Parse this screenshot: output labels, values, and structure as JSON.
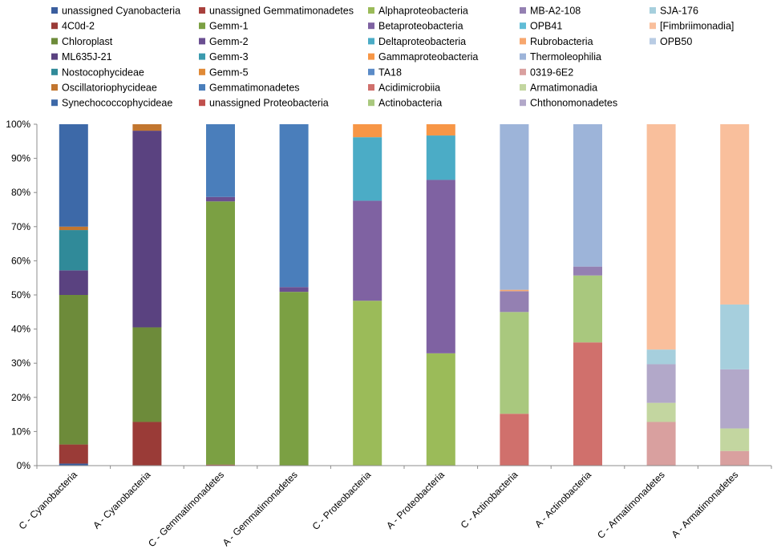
{
  "chart_data": {
    "type": "bar",
    "stacked": true,
    "title": "",
    "xlabel": "",
    "ylabel": "",
    "ylim": [
      0,
      100
    ],
    "y_tick_format": "percent",
    "y_ticks": [
      "0%",
      "10%",
      "20%",
      "30%",
      "40%",
      "50%",
      "60%",
      "70%",
      "80%",
      "90%",
      "100%"
    ],
    "grid": false,
    "legend_position": "top",
    "categories": [
      "C - Cyanobacteria",
      "A - Cyanobacteria",
      "C - Gemmatimonadetes",
      "A - Gemmatimonadetes",
      "C - Proteobacteria",
      "A - Proteobacteria",
      "C - Actinobacteria",
      "A - Actinobacteria",
      "C - Armatimonadetes",
      "A - Armatimonadetes"
    ],
    "series": [
      {
        "name": "unassigned Cyanobacteria",
        "color": "#3A5E9E",
        "values": [
          0.6,
          0,
          0,
          0,
          0,
          0,
          0,
          0,
          0,
          0
        ]
      },
      {
        "name": "4C0d-2",
        "color": "#9A3B37",
        "values": [
          5.6,
          12.8,
          0,
          0,
          0,
          0,
          0,
          0,
          0,
          0
        ]
      },
      {
        "name": "Chloroplast",
        "color": "#6D8B3A",
        "values": [
          43.8,
          27.7,
          0,
          0,
          0,
          0,
          0,
          0,
          0,
          0
        ]
      },
      {
        "name": "ML635J-21",
        "color": "#5A4280",
        "values": [
          7.2,
          57.6,
          0,
          0,
          0,
          0,
          0,
          0,
          0,
          0
        ]
      },
      {
        "name": "Nostocophycideae",
        "color": "#308A99",
        "values": [
          11.8,
          0,
          0,
          0,
          0,
          0,
          0,
          0,
          0,
          0
        ]
      },
      {
        "name": "Oscillatoriophycideae",
        "color": "#C2762F",
        "values": [
          1.0,
          1.9,
          0,
          0,
          0,
          0,
          0,
          0,
          0,
          0
        ]
      },
      {
        "name": "Synechococcophycideae",
        "color": "#3D69A8",
        "values": [
          30.0,
          0,
          0,
          0,
          0,
          0,
          0,
          0,
          0,
          0
        ]
      },
      {
        "name": "unassigned Gemmatimonadetes",
        "color": "#A8403C",
        "values": [
          0,
          0,
          0.3,
          0,
          0,
          0,
          0,
          0,
          0,
          0
        ]
      },
      {
        "name": "Gemm-1",
        "color": "#7BA043",
        "values": [
          0,
          0,
          77.1,
          50.9,
          0,
          0,
          0,
          0,
          0,
          0
        ]
      },
      {
        "name": "Gemm-2",
        "color": "#6A4F91",
        "values": [
          0,
          0,
          1.3,
          1.4,
          0,
          0,
          0,
          0,
          0,
          0
        ]
      },
      {
        "name": "Gemm-3",
        "color": "#3A9AAE",
        "values": [
          0,
          0,
          0,
          0,
          0,
          0,
          0,
          0,
          0,
          0
        ]
      },
      {
        "name": "Gemm-5",
        "color": "#E08A36",
        "values": [
          0,
          0,
          0,
          0,
          0,
          0,
          0,
          0,
          0,
          0
        ]
      },
      {
        "name": "Gemmatimonadetes",
        "color": "#4A7EBB",
        "values": [
          0,
          0,
          21.3,
          47.7,
          0,
          0,
          0,
          0,
          0,
          0
        ]
      },
      {
        "name": "unassigned Proteobacteria",
        "color": "#C0504D",
        "values": [
          0,
          0,
          0,
          0,
          0,
          0,
          0,
          0,
          0,
          0
        ]
      },
      {
        "name": "Alphaproteobacteria",
        "color": "#9BBB59",
        "values": [
          0,
          0,
          0,
          0,
          48.3,
          32.9,
          0,
          0,
          0,
          0
        ]
      },
      {
        "name": "Betaproteobacteria",
        "color": "#7F62A2",
        "values": [
          0,
          0,
          0,
          0,
          29.3,
          50.8,
          0,
          0,
          0,
          0
        ]
      },
      {
        "name": "Deltaproteobacteria",
        "color": "#4BACC6",
        "values": [
          0,
          0,
          0,
          0,
          18.6,
          13.0,
          0,
          0,
          0,
          0
        ]
      },
      {
        "name": "Gammaproteobacteria",
        "color": "#F79646",
        "values": [
          0,
          0,
          0,
          0,
          3.8,
          3.3,
          0,
          0,
          0,
          0
        ]
      },
      {
        "name": "TA18",
        "color": "#5B8BC7",
        "values": [
          0,
          0,
          0,
          0,
          0,
          0,
          0,
          0,
          0,
          0
        ]
      },
      {
        "name": "Acidimicrobiia",
        "color": "#D0706C",
        "values": [
          0,
          0,
          0,
          0,
          0,
          0,
          15.2,
          36.1,
          0,
          0
        ]
      },
      {
        "name": "Actinobacteria",
        "color": "#A9C87E",
        "values": [
          0,
          0,
          0,
          0,
          0,
          0,
          29.8,
          19.6,
          0,
          0
        ]
      },
      {
        "name": "MB-A2-108",
        "color": "#9480B2",
        "values": [
          0,
          0,
          0,
          0,
          0,
          0,
          6.1,
          2.6,
          0,
          0
        ]
      },
      {
        "name": "OPB41",
        "color": "#60BCD6",
        "values": [
          0,
          0,
          0,
          0,
          0,
          0,
          0,
          0,
          0,
          0
        ]
      },
      {
        "name": "Rubrobacteria",
        "color": "#F7A76E",
        "values": [
          0,
          0,
          0,
          0,
          0,
          0,
          0.4,
          0,
          0,
          0
        ]
      },
      {
        "name": "Thermoleophilia",
        "color": "#9DB4D9",
        "values": [
          0,
          0,
          0,
          0,
          0,
          0,
          48.5,
          41.7,
          0,
          0
        ]
      },
      {
        "name": "0319-6E2",
        "color": "#D9A09F",
        "values": [
          0,
          0,
          0,
          0,
          0,
          0,
          0,
          0,
          12.8,
          4.3
        ]
      },
      {
        "name": "Armatimonadia",
        "color": "#C3D6A0",
        "values": [
          0,
          0,
          0,
          0,
          0,
          0,
          0,
          0,
          5.6,
          6.6
        ]
      },
      {
        "name": "Chthonomonadetes",
        "color": "#B2A8C9",
        "values": [
          0,
          0,
          0,
          0,
          0,
          0,
          0,
          0,
          11.3,
          17.3
        ]
      },
      {
        "name": "SJA-176",
        "color": "#A6CFDD",
        "values": [
          0,
          0,
          0,
          0,
          0,
          0,
          0,
          0,
          4.3,
          19.0
        ]
      },
      {
        "name": "[Fimbriimonadia]",
        "color": "#F9BF9C",
        "values": [
          0,
          0,
          0,
          0,
          0,
          0,
          0,
          0,
          66.0,
          52.8
        ]
      },
      {
        "name": "OPB50",
        "color": "#B9CCE4",
        "values": [
          0,
          0,
          0,
          0,
          0,
          0,
          0,
          0,
          0,
          0
        ]
      }
    ]
  }
}
